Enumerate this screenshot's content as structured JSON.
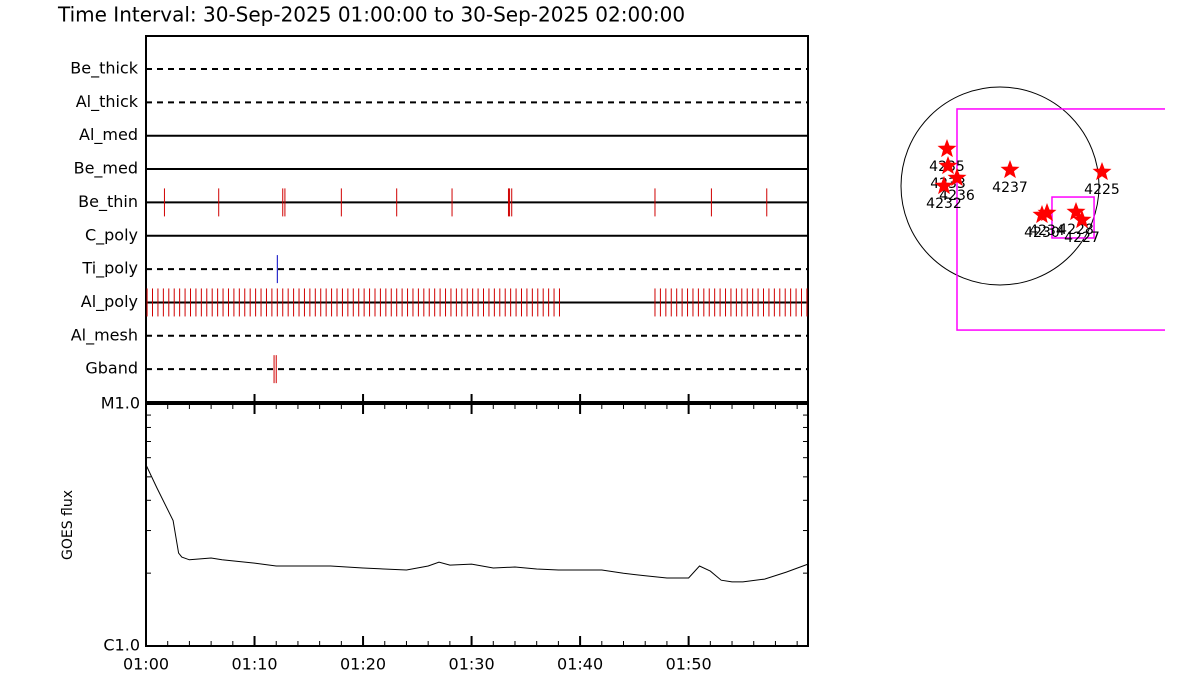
{
  "title": "Time Interval: 30-Sep-2025 01:00:00 to 30-Sep-2025 02:00:00",
  "chart_data": [
    {
      "type": "timeline",
      "categories": [
        "Be_thick",
        "Al_thick",
        "Al_med",
        "Be_med",
        "Be_thin",
        "C_poly",
        "Ti_poly",
        "Al_poly",
        "Al_mesh",
        "Gband"
      ],
      "line_styles": [
        "dashed",
        "dashed",
        "solid",
        "solid",
        "solid",
        "solid",
        "dashed",
        "solid",
        "dashed",
        "dashed"
      ],
      "events": [
        [],
        [],
        [],
        [],
        [
          1.7,
          6.7,
          12.6,
          12.8,
          18.0,
          23.1,
          28.2,
          33.4,
          33.5,
          33.7,
          46.9,
          52.1,
          57.2
        ],
        [],
        [
          12.1
        ],
        [
          0.1,
          0.6,
          1.1,
          1.6,
          2.1,
          2.6,
          3.1,
          3.6,
          4.1,
          4.6,
          5.1,
          5.6,
          6.1,
          6.6,
          7.1,
          7.6,
          8.1,
          8.6,
          9.1,
          9.6,
          10.1,
          10.6,
          11.1,
          11.6,
          12.1,
          12.6,
          13.1,
          13.6,
          14.1,
          14.6,
          15.1,
          15.6,
          16.1,
          16.6,
          17.1,
          17.6,
          18.1,
          18.6,
          19.1,
          19.6,
          20.1,
          20.6,
          21.1,
          21.6,
          22.1,
          22.6,
          23.1,
          23.6,
          24.1,
          24.6,
          25.1,
          25.6,
          26.1,
          26.6,
          27.1,
          27.6,
          28.1,
          28.6,
          29.1,
          29.6,
          30.1,
          30.6,
          31.1,
          31.6,
          32.1,
          32.6,
          33.1,
          33.6,
          34.1,
          34.6,
          35.1,
          35.6,
          36.1,
          36.6,
          37.1,
          37.6,
          38.1,
          46.9,
          47.4,
          47.9,
          48.4,
          48.9,
          49.4,
          49.9,
          50.4,
          50.9,
          51.4,
          51.9,
          52.4,
          52.9,
          53.4,
          53.9,
          54.4,
          54.9,
          55.4,
          55.9,
          56.4,
          56.9,
          57.4,
          57.9,
          58.4,
          58.9,
          59.4,
          59.9,
          60.4,
          60.9
        ],
        [],
        [
          11.8,
          12.0
        ]
      ],
      "event_colors": [
        null,
        null,
        null,
        null,
        "#d00000",
        null,
        "#0000c0",
        "#d00000",
        null,
        "#d00000"
      ],
      "xlim": [
        0,
        61
      ]
    },
    {
      "type": "line",
      "ylabel": "GOES flux",
      "color": "#000000",
      "log_y": true,
      "x": [
        0,
        1,
        2.5,
        3,
        3.3,
        4,
        5,
        6,
        7,
        10,
        12,
        15,
        17,
        20,
        24,
        26,
        27,
        28,
        30,
        32,
        34,
        36,
        38,
        42,
        44,
        46,
        48,
        50,
        51,
        52,
        53,
        54,
        55,
        57,
        59,
        61
      ],
      "values": [
        5.6e-06,
        4.5e-06,
        3.3e-06,
        2.42e-06,
        2.33e-06,
        2.27e-06,
        2.29e-06,
        2.31e-06,
        2.27e-06,
        2.2e-06,
        2.14e-06,
        2.14e-06,
        2.14e-06,
        2.1e-06,
        2.06e-06,
        2.14e-06,
        2.22e-06,
        2.16e-06,
        2.18e-06,
        2.1e-06,
        2.12e-06,
        2.08e-06,
        2.06e-06,
        2.06e-06,
        2e-06,
        1.95e-06,
        1.91e-06,
        1.91e-06,
        2.14e-06,
        2.04e-06,
        1.87e-06,
        1.84e-06,
        1.84e-06,
        1.89e-06,
        2.02e-06,
        2.18e-06
      ],
      "ylim": [
        1e-06,
        1e-05
      ],
      "yticks": [
        {
          "value": 1e-06,
          "label": "C1.0"
        },
        {
          "value": 1e-05,
          "label": "M1.0"
        }
      ],
      "xlim": [
        0,
        61
      ],
      "xticks": [
        {
          "value": 0,
          "label": "01:00"
        },
        {
          "value": 10,
          "label": "01:10"
        },
        {
          "value": 20,
          "label": "01:20"
        },
        {
          "value": 30,
          "label": "01:30"
        },
        {
          "value": 40,
          "label": "01:40"
        },
        {
          "value": 50,
          "label": "01:50"
        }
      ]
    },
    {
      "type": "map",
      "solar_radius": 960,
      "color": "#ff0000",
      "fov_color": "#ff00ff",
      "labels": [
        "4235",
        "4233",
        "4236",
        "4232",
        "4237",
        "4225",
        "4230",
        "4234",
        "4228",
        "4227"
      ],
      "x": [
        -514,
        -504,
        -417,
        -543,
        97,
        989,
        407,
        456,
        737,
        795
      ],
      "y": [
        359,
        194,
        78,
        0,
        155,
        136,
        -281,
        -262,
        -252,
        -330
      ],
      "fov": [
        -417,
        747,
        1700,
        -1397
      ],
      "roi": [
        504,
        -107,
        912,
        -504
      ]
    }
  ]
}
